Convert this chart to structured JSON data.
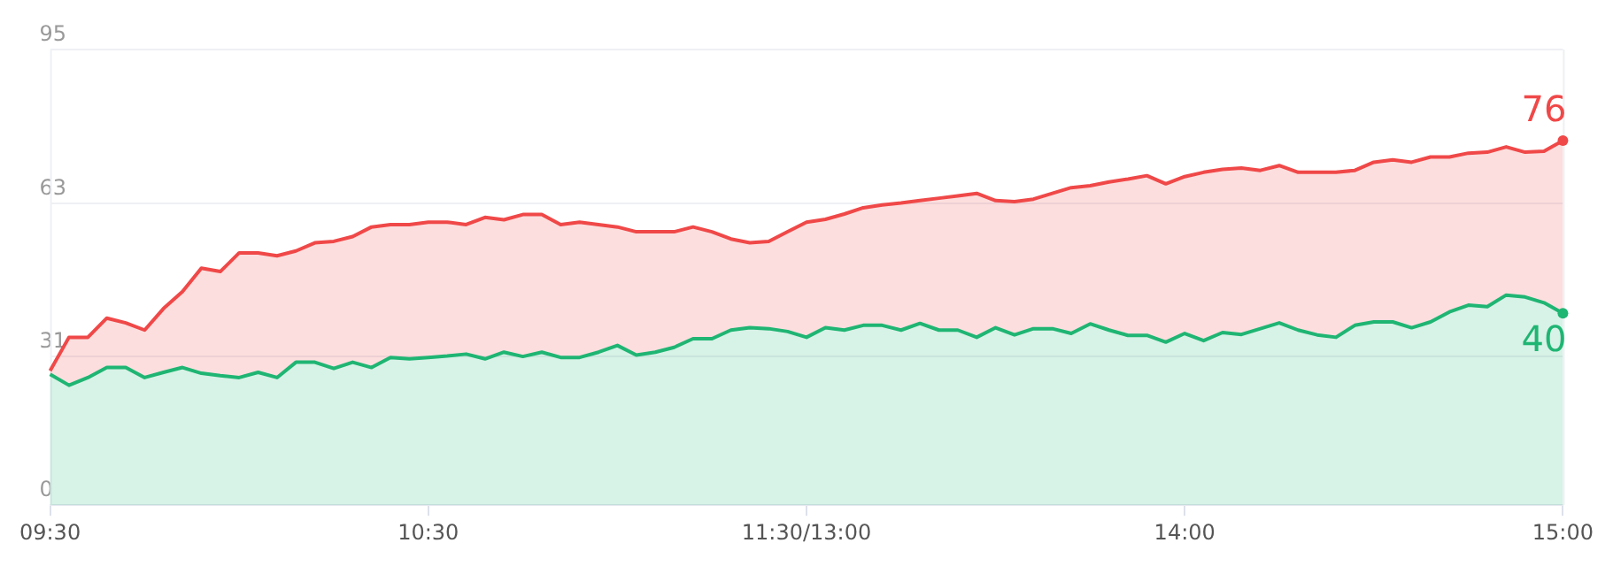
{
  "chart_data": {
    "type": "area",
    "categories": [
      "09:30",
      null,
      null,
      null,
      null,
      null,
      null,
      null,
      null,
      null,
      null,
      null,
      null,
      null,
      null,
      null,
      null,
      null,
      null,
      null,
      "10:30",
      null,
      null,
      null,
      null,
      null,
      null,
      null,
      null,
      null,
      null,
      null,
      null,
      null,
      null,
      null,
      null,
      null,
      null,
      null,
      "11:30/13:00",
      null,
      null,
      null,
      null,
      null,
      null,
      null,
      null,
      null,
      null,
      null,
      null,
      null,
      null,
      null,
      null,
      null,
      null,
      null,
      "14:00",
      null,
      null,
      null,
      null,
      null,
      null,
      null,
      null,
      null,
      null,
      null,
      null,
      null,
      null,
      null,
      null,
      null,
      null,
      null,
      "15:00"
    ],
    "ylim": [
      0,
      95
    ],
    "yticks": [
      0,
      31,
      63,
      95
    ],
    "grid": "y",
    "legend": false,
    "marker": "none",
    "line_style": "solid",
    "series": [
      {
        "color": "#f04848",
        "values": [
          28,
          35,
          35,
          39,
          38,
          36.5,
          41,
          44.5,
          49.4,
          48.7,
          52.6,
          52.6,
          52,
          53,
          54.7,
          55,
          56,
          58,
          58.5,
          58.5,
          59,
          59,
          58.5,
          60,
          59.5,
          60.6,
          60.6,
          58.5,
          59,
          58.5,
          58,
          57,
          57,
          57,
          58,
          57,
          55.5,
          54.7,
          55,
          57,
          59,
          59.6,
          60.7,
          62,
          62.6,
          63,
          63.5,
          64,
          64.5,
          65,
          63.5,
          63.3,
          63.8,
          65,
          66.2,
          66.6,
          67.4,
          68,
          68.7,
          67,
          68.5,
          69.4,
          70,
          70.3,
          69.8,
          70.8,
          69.4,
          69.4,
          69.4,
          69.8,
          71.5,
          72,
          71.5,
          72.6,
          72.6,
          73.4,
          73.6,
          74.7,
          73.6,
          73.8,
          76
        ]
      },
      {
        "color": "#1fb573",
        "values": [
          27.3,
          25,
          26.6,
          28.7,
          28.7,
          26.6,
          27.7,
          28.7,
          27.5,
          27,
          26.6,
          27.7,
          26.6,
          29.8,
          29.8,
          28.5,
          29.8,
          28.7,
          30.8,
          30.5,
          30.8,
          31.1,
          31.5,
          30.5,
          31.9,
          31,
          31.9,
          30.8,
          30.8,
          31.9,
          33.3,
          31.3,
          31.9,
          32.9,
          34.7,
          34.7,
          36.5,
          37,
          36.8,
          36.2,
          35,
          37,
          36.5,
          37.5,
          37.5,
          36.5,
          37.9,
          36.5,
          36.5,
          35,
          37,
          35.5,
          36.8,
          36.8,
          35.8,
          37.8,
          36.5,
          35.4,
          35.4,
          34,
          35.8,
          34.3,
          36,
          35.6,
          36.8,
          38,
          36.5,
          35.5,
          35,
          37.5,
          38.2,
          38.2,
          37,
          38.2,
          40.3,
          41.7,
          41.4,
          43.8,
          43.4,
          42.2,
          40
        ]
      }
    ],
    "annotations": [
      {
        "text": "76",
        "x": "15:00",
        "y": 76
      },
      {
        "text": "40",
        "x": "15:00",
        "y": 40
      }
    ]
  }
}
